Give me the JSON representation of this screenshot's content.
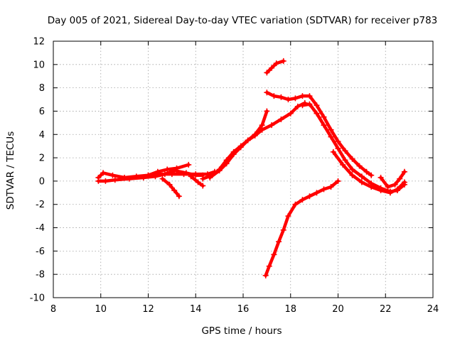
{
  "chart_data": {
    "type": "scatter",
    "title": "Day 005 of 2021, Sidereal Day-to-day VTEC variation (SDTVAR) for receiver p783",
    "xlabel": "GPS time / hours",
    "ylabel": "SDTVAR / TECUs",
    "xlim": [
      8,
      24
    ],
    "ylim": [
      -10,
      12
    ],
    "xticks": [
      8,
      10,
      12,
      14,
      16,
      18,
      20,
      22,
      24
    ],
    "yticks": [
      -10,
      -8,
      -6,
      -4,
      -2,
      0,
      2,
      4,
      6,
      8,
      10,
      12
    ],
    "grid": true,
    "legend": "none",
    "marker": "plus",
    "color": "#ff0000",
    "series": [
      {
        "x": [
          9.9,
          10.1,
          10.5,
          11.0,
          11.5,
          12.0,
          12.5,
          13.0,
          13.5,
          14.0,
          14.5,
          14.8
        ],
        "y": [
          0.3,
          0.7,
          0.5,
          0.3,
          0.4,
          0.5,
          0.6,
          0.6,
          0.6,
          0.6,
          0.6,
          0.8
        ]
      },
      {
        "x": [
          9.9,
          10.2,
          10.6,
          11.2,
          11.8,
          12.3,
          12.7,
          13.1,
          13.6,
          14.0,
          14.3
        ],
        "y": [
          0.0,
          0.0,
          0.1,
          0.2,
          0.3,
          0.4,
          0.6,
          0.9,
          0.7,
          0.5,
          0.5
        ]
      },
      {
        "x": [
          12.0,
          12.4,
          12.8,
          13.2,
          13.7
        ],
        "y": [
          0.5,
          0.8,
          1.0,
          1.1,
          1.4
        ]
      },
      {
        "x": [
          12.6,
          12.9,
          13.1,
          13.3
        ],
        "y": [
          0.2,
          -0.3,
          -0.8,
          -1.3
        ]
      },
      {
        "x": [
          13.8,
          14.1,
          14.3
        ],
        "y": [
          0.4,
          -0.1,
          -0.4
        ]
      },
      {
        "x": [
          14.3,
          14.7,
          15.0,
          15.3,
          15.6,
          15.9,
          16.2,
          16.5,
          16.8,
          17.0
        ],
        "y": [
          0.2,
          0.5,
          1.0,
          1.8,
          2.5,
          3.0,
          3.5,
          4.0,
          4.8,
          6.0
        ]
      },
      {
        "x": [
          14.6,
          15.0,
          15.3,
          15.6,
          15.9,
          16.2,
          16.5,
          16.8,
          17.2,
          17.6,
          18.0,
          18.3,
          18.6
        ],
        "y": [
          0.3,
          0.9,
          1.5,
          2.3,
          2.9,
          3.5,
          3.9,
          4.4,
          4.8,
          5.3,
          5.8,
          6.4,
          6.7
        ]
      },
      {
        "x": [
          17.0,
          17.3,
          17.6,
          17.9,
          18.2,
          18.5,
          18.8,
          19.1,
          19.4,
          19.7,
          20.0,
          20.3,
          20.6,
          20.9,
          21.2,
          21.4
        ],
        "y": [
          7.6,
          7.3,
          7.2,
          7.0,
          7.1,
          7.3,
          7.3,
          6.5,
          5.5,
          4.4,
          3.4,
          2.6,
          1.9,
          1.3,
          0.8,
          0.5
        ]
      },
      {
        "x": [
          18.5,
          18.8,
          19.1,
          19.4,
          19.7,
          20.0,
          20.3,
          20.6,
          21.0,
          21.4,
          21.8,
          22.2,
          22.5,
          22.8
        ],
        "y": [
          6.5,
          6.6,
          5.8,
          4.8,
          3.8,
          2.8,
          1.8,
          1.0,
          0.4,
          -0.2,
          -0.6,
          -0.9,
          -0.8,
          -0.3
        ]
      },
      {
        "x": [
          19.8,
          20.2,
          20.6,
          21.0,
          21.4,
          21.8,
          22.2,
          22.5,
          22.8
        ],
        "y": [
          2.5,
          1.4,
          0.5,
          -0.1,
          -0.5,
          -0.8,
          -1.0,
          -0.7,
          -0.1
        ]
      },
      {
        "x": [
          21.8,
          22.1,
          22.4,
          22.6,
          22.8
        ],
        "y": [
          0.3,
          -0.5,
          -0.3,
          0.2,
          0.8
        ]
      },
      {
        "x": [
          17.0,
          17.2,
          17.4,
          17.7
        ],
        "y": [
          9.3,
          9.7,
          10.1,
          10.3
        ]
      },
      {
        "x": [
          16.95,
          17.1,
          17.3,
          17.5,
          17.7,
          17.9,
          18.2,
          18.5,
          18.8,
          19.1,
          19.4,
          19.7,
          20.0
        ],
        "y": [
          -8.1,
          -7.3,
          -6.3,
          -5.2,
          -4.2,
          -3.0,
          -2.0,
          -1.6,
          -1.3,
          -1.0,
          -0.7,
          -0.5,
          0.0
        ]
      }
    ]
  }
}
